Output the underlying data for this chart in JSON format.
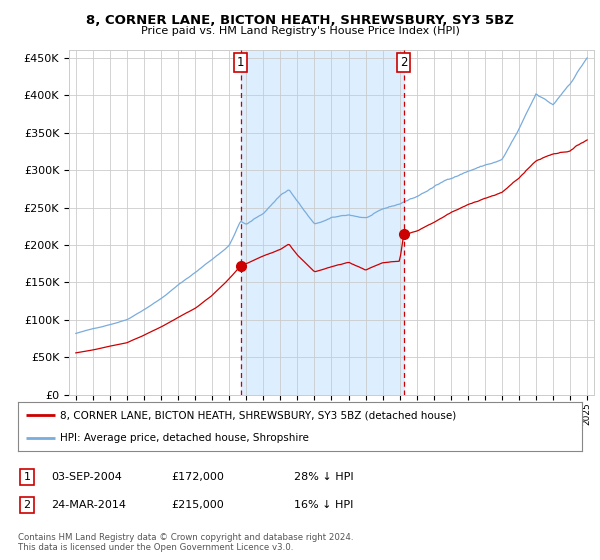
{
  "title": "8, CORNER LANE, BICTON HEATH, SHREWSBURY, SY3 5BZ",
  "subtitle": "Price paid vs. HM Land Registry's House Price Index (HPI)",
  "legend_line1": "8, CORNER LANE, BICTON HEATH, SHREWSBURY, SY3 5BZ (detached house)",
  "legend_line2": "HPI: Average price, detached house, Shropshire",
  "annotation1_date": "03-SEP-2004",
  "annotation1_price": 172000,
  "annotation1_text": "28% ↓ HPI",
  "annotation2_date": "24-MAR-2014",
  "annotation2_price": 215000,
  "annotation2_text": "16% ↓ HPI",
  "footnote1": "Contains HM Land Registry data © Crown copyright and database right 2024.",
  "footnote2": "This data is licensed under the Open Government Licence v3.0.",
  "hpi_color": "#7aacdc",
  "price_color": "#cc0000",
  "shading_color": "#ddeeff",
  "vline_color": "#cc0000",
  "background_color": "#ffffff",
  "grid_color": "#cccccc",
  "ylim": [
    0,
    460000
  ],
  "yticks": [
    0,
    50000,
    100000,
    150000,
    200000,
    250000,
    300000,
    350000,
    400000,
    450000
  ],
  "xlim_start": 1994.6,
  "xlim_end": 2025.4,
  "sale1_year": 2004.67,
  "sale2_year": 2014.23
}
